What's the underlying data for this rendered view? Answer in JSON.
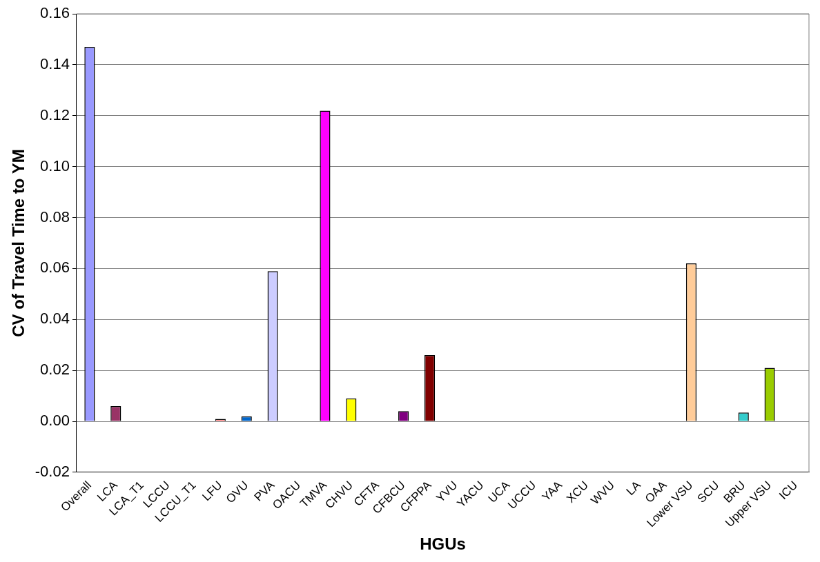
{
  "chart_data": {
    "type": "bar",
    "xlabel": "HGUs",
    "ylabel": "CV of Travel Time to YM",
    "categories": [
      "Overall",
      "LCA",
      "LCA_T1",
      "LCCU",
      "LCCU_T1",
      "LFU",
      "OVU",
      "PVA",
      "OACU",
      "TMVA",
      "CHVU",
      "CFTA",
      "CFBCU",
      "CFPPA",
      "YVU",
      "YACU",
      "UCA",
      "UCCU",
      "YAA",
      "XCU",
      "WVU",
      "LA",
      "OAA",
      "Lower VSU",
      "SCU",
      "BRU",
      "Upper VSU",
      "ICU"
    ],
    "values": [
      0.147,
      0.006,
      0,
      0,
      0,
      0.001,
      0.002,
      0.059,
      0,
      0.122,
      0.009,
      0,
      0.004,
      0.026,
      0,
      0,
      0,
      0,
      0,
      0,
      0,
      0,
      0,
      0.062,
      0,
      0.0035,
      0.021,
      0
    ],
    "colors": [
      "#9999ff",
      "#993366",
      "#ffffcc",
      "#ccffff",
      "#660066",
      "#ff8080",
      "#0066cc",
      "#ccccff",
      "#000080",
      "#ff00ff",
      "#ffff00",
      "#00ffff",
      "#800080",
      "#800000",
      "#008080",
      "#0000ff",
      "#00ccff",
      "#ccffff",
      "#ccffcc",
      "#ffff99",
      "#99ccff",
      "#ff99cc",
      "#cc99ff",
      "#ffcc99",
      "#3366ff",
      "#33cccc",
      "#99cc00",
      "#ffcc00"
    ],
    "ylim": [
      -0.02,
      0.16
    ],
    "yticks": [
      {
        "value": -0.02,
        "label": "-0.02"
      },
      {
        "value": 0,
        "label": "0.00"
      },
      {
        "value": 0.02,
        "label": "0.02"
      },
      {
        "value": 0.04,
        "label": "0.04"
      },
      {
        "value": 0.06,
        "label": "0.06"
      },
      {
        "value": 0.08,
        "label": "0.08"
      },
      {
        "value": 0.1,
        "label": "0.10"
      },
      {
        "value": 0.12,
        "label": "0.12"
      },
      {
        "value": 0.14,
        "label": "0.14"
      },
      {
        "value": 0.16,
        "label": "0.16"
      }
    ],
    "grid": "y",
    "legend": false
  }
}
